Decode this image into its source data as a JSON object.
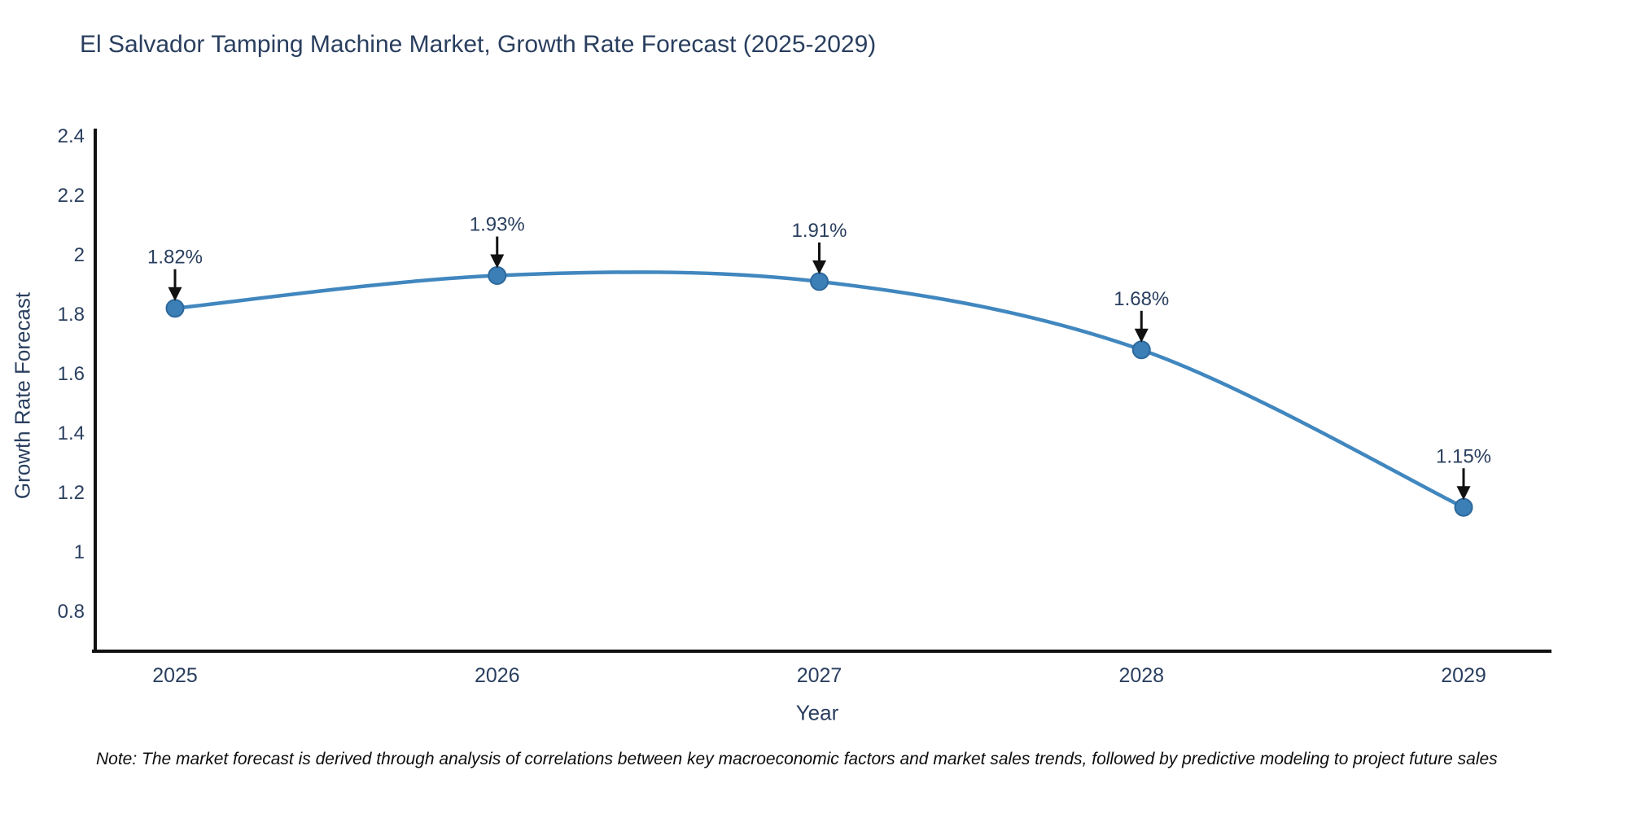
{
  "title": "El Salvador Tamping Machine Market, Growth Rate Forecast (2025-2029)",
  "note": "Note: The market forecast is derived through analysis of correlations between key macroeconomic factors and market sales trends, followed by predictive modeling to project future sales",
  "chart_data": {
    "type": "line",
    "title": "El Salvador Tamping Machine Market, Growth Rate Forecast (2025-2029)",
    "xlabel": "Year",
    "ylabel": "Growth Rate Forecast",
    "categories": [
      "2025",
      "2026",
      "2027",
      "2028",
      "2029"
    ],
    "series": [
      {
        "name": "Growth Rate Forecast",
        "values": [
          1.82,
          1.93,
          1.91,
          1.68,
          1.15
        ],
        "point_labels": [
          "1.82%",
          "1.93%",
          "1.91%",
          "1.68%",
          "1.15%"
        ]
      }
    ],
    "line_shape": "spline",
    "markers": true,
    "annotations_arrows": true,
    "grid": false,
    "legend_position": "none",
    "ylim": [
      0.66,
      2.42
    ],
    "yticks": [
      0.8,
      1,
      1.2,
      1.4,
      1.6,
      1.8,
      2,
      2.2,
      2.4
    ],
    "ytick_labels": [
      "0.8",
      "1",
      "1.2",
      "1.4",
      "1.6",
      "1.8",
      "2",
      "2.2",
      "2.4"
    ],
    "colors": {
      "line": "#4187bf",
      "marker_fill": "#3c7fb7",
      "marker_edge": "#2d689c",
      "arrow": "#111111",
      "axis_line": "#111111",
      "tick_text": "#2a3f5f",
      "title_text": "#2a3f5f",
      "note_text": "#0d0d0d",
      "background": "#ffffff"
    }
  }
}
